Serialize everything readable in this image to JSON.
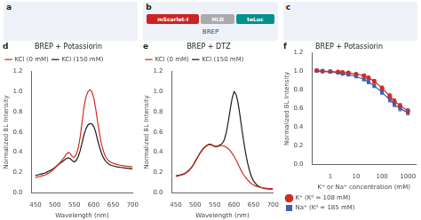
{
  "chart_data": [
    {
      "type": "line",
      "title": "BREP + Potassiorin",
      "annotations": [
        "d"
      ],
      "x_label": "Wavelength (nm)",
      "y_label": "Normalized BL Intensity",
      "x": [
        450,
        455,
        460,
        465,
        470,
        475,
        480,
        485,
        490,
        495,
        500,
        505,
        510,
        515,
        520,
        525,
        530,
        535,
        540,
        545,
        550,
        555,
        560,
        565,
        570,
        575,
        580,
        585,
        590,
        595,
        600,
        605,
        610,
        615,
        620,
        625,
        630,
        635,
        640,
        645,
        650,
        660,
        670,
        680,
        690,
        700
      ],
      "series": [
        {
          "name": "KCl (0 mM)",
          "color": "#d42b1e",
          "values": [
            0.15,
            0.155,
            0.16,
            0.165,
            0.17,
            0.175,
            0.185,
            0.195,
            0.21,
            0.225,
            0.245,
            0.265,
            0.285,
            0.305,
            0.33,
            0.355,
            0.385,
            0.4,
            0.385,
            0.355,
            0.35,
            0.38,
            0.44,
            0.55,
            0.7,
            0.85,
            0.95,
            1.0,
            1.02,
            1.0,
            0.94,
            0.83,
            0.7,
            0.58,
            0.48,
            0.41,
            0.36,
            0.33,
            0.31,
            0.3,
            0.29,
            0.28,
            0.27,
            0.265,
            0.26,
            0.255
          ]
        },
        {
          "name": "KCl (150 mM)",
          "color": "#1a1a1a",
          "values": [
            0.17,
            0.175,
            0.18,
            0.185,
            0.19,
            0.195,
            0.205,
            0.215,
            0.225,
            0.235,
            0.25,
            0.265,
            0.28,
            0.295,
            0.31,
            0.325,
            0.34,
            0.345,
            0.335,
            0.315,
            0.305,
            0.32,
            0.355,
            0.415,
            0.495,
            0.575,
            0.635,
            0.67,
            0.685,
            0.68,
            0.655,
            0.6,
            0.52,
            0.45,
            0.39,
            0.345,
            0.315,
            0.295,
            0.28,
            0.27,
            0.265,
            0.255,
            0.25,
            0.245,
            0.24,
            0.235
          ]
        }
      ],
      "xlim": [
        440,
        700
      ],
      "xticks": [
        450,
        500,
        550,
        600,
        650,
        700
      ],
      "ylim": [
        0.0,
        1.2
      ],
      "yticks": [
        {
          "value": 0.0,
          "label": "0.0"
        },
        0.2,
        0.4,
        0.6,
        0.8,
        {
          "value": 1.0,
          "label": "1.0"
        },
        1.2
      ],
      "grid": false,
      "legend": "upper left"
    },
    {
      "type": "line",
      "title": "BREP + DTZ",
      "annotations": [
        "e"
      ],
      "x_label": "Wavelength (nm)",
      "y_label": "Normalized BL Intensity",
      "x": [
        450,
        455,
        460,
        465,
        470,
        475,
        480,
        485,
        490,
        495,
        500,
        505,
        510,
        515,
        520,
        525,
        530,
        535,
        540,
        545,
        550,
        555,
        560,
        565,
        570,
        575,
        580,
        585,
        590,
        595,
        600,
        605,
        610,
        615,
        620,
        625,
        630,
        635,
        640,
        645,
        650,
        660,
        670,
        680,
        690,
        700
      ],
      "series": [
        {
          "name": "KCl (0 mM)",
          "color": "#d42b1e",
          "values": [
            0.16,
            0.165,
            0.17,
            0.175,
            0.18,
            0.19,
            0.205,
            0.22,
            0.245,
            0.27,
            0.305,
            0.34,
            0.375,
            0.405,
            0.43,
            0.45,
            0.465,
            0.475,
            0.475,
            0.465,
            0.455,
            0.455,
            0.46,
            0.465,
            0.465,
            0.46,
            0.45,
            0.435,
            0.415,
            0.39,
            0.36,
            0.325,
            0.285,
            0.245,
            0.205,
            0.175,
            0.15,
            0.125,
            0.105,
            0.09,
            0.075,
            0.06,
            0.05,
            0.045,
            0.04,
            0.04
          ]
        },
        {
          "name": "KCl (150 mM)",
          "color": "#1a1a1a",
          "values": [
            0.165,
            0.17,
            0.175,
            0.18,
            0.185,
            0.195,
            0.21,
            0.225,
            0.25,
            0.275,
            0.31,
            0.345,
            0.38,
            0.41,
            0.435,
            0.455,
            0.47,
            0.48,
            0.48,
            0.47,
            0.46,
            0.46,
            0.465,
            0.475,
            0.49,
            0.525,
            0.595,
            0.7,
            0.825,
            0.935,
            1.0,
            0.975,
            0.895,
            0.77,
            0.63,
            0.5,
            0.385,
            0.29,
            0.215,
            0.155,
            0.115,
            0.07,
            0.05,
            0.04,
            0.035,
            0.035
          ]
        }
      ],
      "xlim": [
        440,
        700
      ],
      "xticks": [
        450,
        500,
        550,
        600,
        650,
        700
      ],
      "ylim": [
        0.0,
        1.2
      ],
      "yticks": [
        {
          "value": 0.0,
          "label": "0.0"
        },
        0.2,
        0.4,
        0.6,
        0.8,
        {
          "value": 1.0,
          "label": "1.0"
        },
        1.2
      ],
      "grid": false,
      "legend": "upper left"
    },
    {
      "type": "line",
      "title": "BREP + Potassiorin",
      "annotations": [
        "f"
      ],
      "x_label": "K⁺ or Na⁺ concentration (mM)",
      "y_label": "Normalized BL Intensity",
      "x": [
        0.3,
        0.5,
        1,
        2,
        3,
        5,
        10,
        20,
        30,
        50,
        100,
        200,
        300,
        500,
        1000
      ],
      "series": [
        {
          "name": "K⁺ (Kᵈ = 108 mM)",
          "color": "#d42b1e",
          "marker": "circle",
          "values": [
            1.01,
            1.005,
            1.0,
            0.995,
            0.99,
            0.985,
            0.97,
            0.955,
            0.93,
            0.895,
            0.82,
            0.735,
            0.68,
            0.63,
            0.575
          ],
          "errors": [
            0.015,
            0.012,
            0.01,
            0.01,
            0.01,
            0.01,
            0.012,
            0.015,
            0.018,
            0.02,
            0.022,
            0.025,
            0.025,
            0.025,
            0.025
          ]
        },
        {
          "name": "Na⁺ (Kᵈ = 185 mM)",
          "color": "#4060b8",
          "marker": "square",
          "values": [
            1.005,
            1.0,
            0.995,
            0.985,
            0.975,
            0.965,
            0.945,
            0.915,
            0.885,
            0.845,
            0.775,
            0.695,
            0.645,
            0.6,
            0.555
          ],
          "errors": [
            0.015,
            0.012,
            0.01,
            0.01,
            0.01,
            0.01,
            0.012,
            0.015,
            0.018,
            0.02,
            0.022,
            0.025,
            0.025,
            0.025,
            0.025
          ]
        }
      ],
      "xlim": [
        0.2,
        2000
      ],
      "xticks": [
        1,
        10,
        100,
        1000
      ],
      "log": "x",
      "ylim": [
        0.0,
        1.2
      ],
      "yticks": [
        {
          "value": 0.0,
          "label": "0.0"
        },
        0.2,
        0.4,
        0.6,
        0.8,
        {
          "value": 1.0,
          "label": "1.0"
        },
        1.2
      ],
      "grid": false,
      "legend": "lower left"
    }
  ],
  "image_panels": [
    {
      "annotations": [
        "a"
      ]
    },
    {
      "annotations": [
        "b",
        {
          "text": "mScarlet-I",
          "color": "#cc2222"
        },
        {
          "text": "HLD",
          "color": "#aaaaaa"
        },
        {
          "text": "teLuc",
          "color": "#009090"
        },
        "BREP"
      ]
    },
    {
      "annotations": [
        "c"
      ]
    }
  ]
}
